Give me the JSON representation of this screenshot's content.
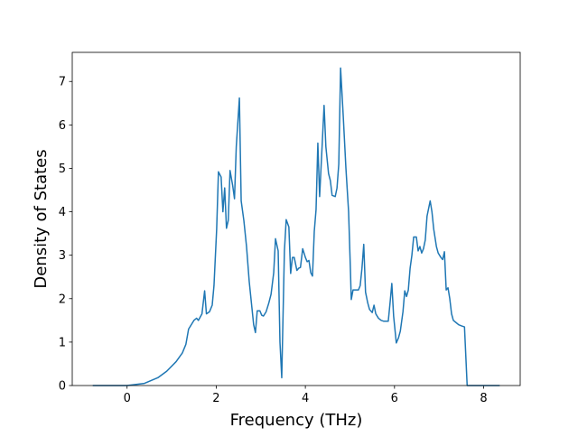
{
  "chart_data": {
    "type": "line",
    "xlabel": "Frequency (THz)",
    "ylabel": "Density of States",
    "color": "#1f77b4",
    "xlim": [
      -1.23,
      8.82
    ],
    "xticks": [
      0,
      2,
      4,
      6,
      8
    ],
    "ylim": [
      0,
      7.67
    ],
    "yticks": [
      0,
      1,
      2,
      3,
      4,
      5,
      6,
      7
    ],
    "grid": false,
    "x": [
      -0.77,
      0,
      0.39,
      0.69,
      0.89,
      1.1,
      1.24,
      1.32,
      1.38,
      1.5,
      1.56,
      1.6,
      1.68,
      1.74,
      1.78,
      1.85,
      1.91,
      1.95,
      2.01,
      2.05,
      2.11,
      2.15,
      2.19,
      2.23,
      2.27,
      2.31,
      2.37,
      2.41,
      2.45,
      2.52,
      2.56,
      2.62,
      2.68,
      2.74,
      2.8,
      2.84,
      2.88,
      2.92,
      2.98,
      3.02,
      3.06,
      3.12,
      3.18,
      3.23,
      3.29,
      3.33,
      3.39,
      3.43,
      3.47,
      3.53,
      3.57,
      3.63,
      3.67,
      3.71,
      3.75,
      3.81,
      3.85,
      3.89,
      3.94,
      4.0,
      4.04,
      4.08,
      4.12,
      4.16,
      4.2,
      4.24,
      4.28,
      4.32,
      4.38,
      4.42,
      4.46,
      4.52,
      4.56,
      4.6,
      4.67,
      4.71,
      4.75,
      4.79,
      4.85,
      4.91,
      4.97,
      5.01,
      5.03,
      5.07,
      5.13,
      5.19,
      5.23,
      5.27,
      5.31,
      5.35,
      5.4,
      5.44,
      5.5,
      5.54,
      5.58,
      5.64,
      5.7,
      5.76,
      5.86,
      5.9,
      5.94,
      5.98,
      6.04,
      6.09,
      6.13,
      6.19,
      6.23,
      6.27,
      6.31,
      6.35,
      6.39,
      6.43,
      6.49,
      6.53,
      6.57,
      6.61,
      6.65,
      6.69,
      6.73,
      6.8,
      6.84,
      6.88,
      6.94,
      6.98,
      7.04,
      7.08,
      7.12,
      7.16,
      7.2,
      7.24,
      7.28,
      7.32,
      7.38,
      7.44,
      7.51,
      7.57,
      7.63,
      8.36
    ],
    "values": [
      0,
      0,
      0.05,
      0.18,
      0.33,
      0.55,
      0.75,
      0.95,
      1.3,
      1.5,
      1.55,
      1.5,
      1.65,
      2.18,
      1.65,
      1.7,
      1.85,
      2.3,
      3.6,
      4.92,
      4.8,
      4.0,
      4.55,
      3.62,
      3.8,
      4.95,
      4.6,
      4.3,
      5.5,
      6.62,
      4.25,
      3.8,
      3.2,
      2.4,
      1.8,
      1.4,
      1.22,
      1.72,
      1.72,
      1.62,
      1.6,
      1.7,
      1.9,
      2.1,
      2.6,
      3.38,
      3.1,
      1.0,
      0.18,
      3.1,
      3.82,
      3.65,
      2.58,
      2.95,
      2.95,
      2.65,
      2.7,
      2.72,
      3.15,
      2.95,
      2.85,
      2.88,
      2.6,
      2.52,
      3.55,
      4.05,
      5.58,
      4.35,
      5.6,
      6.45,
      5.5,
      4.88,
      4.72,
      4.38,
      4.35,
      4.55,
      5.1,
      7.31,
      6.2,
      5.0,
      4.0,
      2.7,
      1.98,
      2.2,
      2.2,
      2.2,
      2.3,
      2.7,
      3.25,
      2.15,
      1.9,
      1.75,
      1.68,
      1.85,
      1.65,
      1.55,
      1.5,
      1.48,
      1.48,
      1.9,
      2.35,
      1.6,
      0.98,
      1.1,
      1.25,
      1.7,
      2.18,
      2.05,
      2.2,
      2.7,
      3.0,
      3.42,
      3.42,
      3.1,
      3.2,
      3.05,
      3.15,
      3.35,
      3.9,
      4.25,
      4.0,
      3.6,
      3.2,
      3.05,
      2.95,
      2.9,
      3.08,
      2.2,
      2.25,
      2.0,
      1.65,
      1.5,
      1.45,
      1.4,
      1.37,
      1.35,
      0,
      0
    ]
  }
}
